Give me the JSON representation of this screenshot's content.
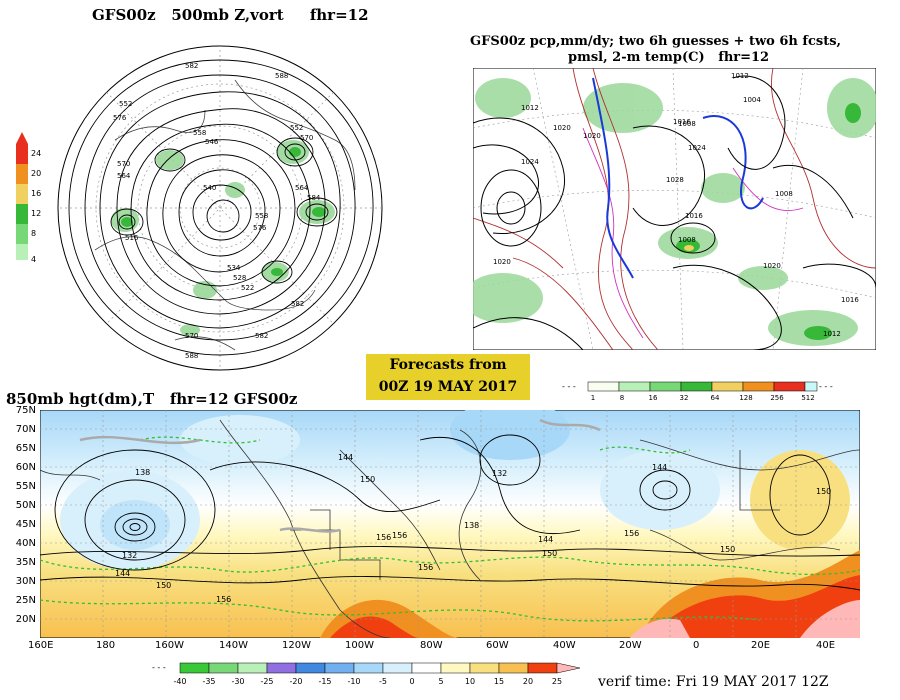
{
  "panel_500mb": {
    "title": "GFS00z   500mb Z,vort     fhr=12",
    "colorbar": {
      "labels": [
        "24",
        "20",
        "16",
        "12",
        "8",
        "4"
      ],
      "colors": [
        "#e83020",
        "#f09020",
        "#f0d060",
        "#38b838",
        "#78d878",
        "#b8f0b8"
      ]
    },
    "contour_labels": [
      "582",
      "588",
      "552",
      "576",
      "570",
      "564",
      "540",
      "558",
      "546",
      "534",
      "528",
      "522",
      "516",
      "552",
      "570",
      "558",
      "576",
      "564",
      "584",
      "570",
      "582",
      "588",
      "582"
    ]
  },
  "panel_pcp": {
    "title_line1": "GFS00z pcp,mm/dy; two 6h guesses + two 6h fcsts,",
    "title_line2": "pmsl, 2-m temp(C)   fhr=12",
    "isobar_labels": [
      "1012",
      "1024",
      "1020",
      "1008",
      "1016",
      "1024",
      "1020",
      "1004",
      "1028",
      "1016",
      "1008",
      "1020",
      "1008",
      "1016",
      "1012",
      "1012",
      "1020"
    ],
    "colorbar": {
      "labels": [
        "1",
        "8",
        "16",
        "32",
        "64",
        "128",
        "256",
        "512"
      ],
      "colors": [
        "#f8fff0",
        "#b8f0b8",
        "#78d878",
        "#38b838",
        "#f0d060",
        "#f09020",
        "#e83020",
        "#c8f8f8"
      ]
    }
  },
  "banner": {
    "line1": "Forecasts from",
    "line2": "00Z 19 MAY 2017"
  },
  "panel_850mb": {
    "title": "850mb hgt(dm),T   fhr=12 GFS00z",
    "lat_labels": [
      "75N",
      "70N",
      "65N",
      "60N",
      "55N",
      "50N",
      "45N",
      "40N",
      "35N",
      "30N",
      "25N",
      "20N"
    ],
    "lon_labels": [
      "160E",
      "180",
      "160W",
      "140W",
      "120W",
      "100W",
      "80W",
      "60W",
      "40W",
      "20W",
      "0",
      "20E",
      "40E"
    ],
    "height_labels": [
      "138",
      "144",
      "150",
      "144",
      "132",
      "156",
      "132",
      "144",
      "156",
      "150",
      "156",
      "138",
      "144",
      "150",
      "156",
      "150",
      "150",
      "156"
    ],
    "colorbar": {
      "labels": [
        "-40",
        "-35",
        "-30",
        "-25",
        "-20",
        "-15",
        "-10",
        "-5",
        "0",
        "5",
        "10",
        "15",
        "20",
        "25"
      ],
      "colors": [
        "#38c838",
        "#78d878",
        "#b8f0b8",
        "#9070e0",
        "#4088e0",
        "#70b0f0",
        "#a8d8f8",
        "#d8f0fc",
        "#ffffff",
        "#fff8c0",
        "#f8e080",
        "#f8c050",
        "#f09020",
        "#f04010",
        "#ffb8b8"
      ]
    }
  },
  "verif_time": "verif time: Fri 19 MAY 2017 12Z"
}
